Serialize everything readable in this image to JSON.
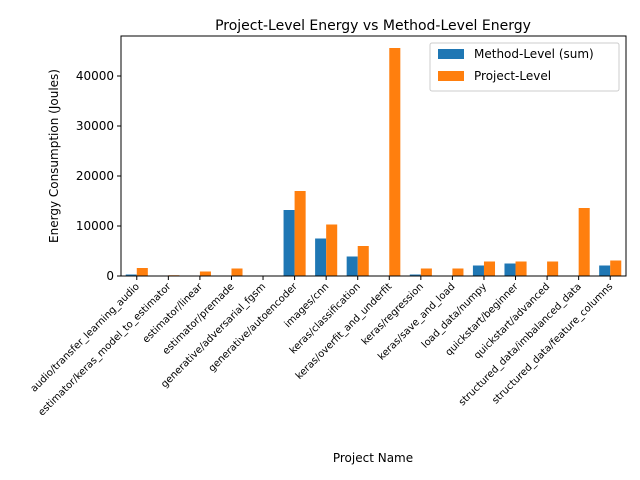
{
  "chart_data": {
    "type": "bar",
    "title": "Project-Level Energy vs Method-Level Energy",
    "xlabel": "Project Name",
    "ylabel": "Energy Consumption (Joules)",
    "ylim": [
      0,
      48000
    ],
    "yticks": [
      0,
      10000,
      20000,
      30000,
      40000
    ],
    "grid": false,
    "legend_position": "top-right",
    "categories": [
      "audio/transfer_learning_audio",
      "estimator/keras_model_to_estimator",
      "estimator/linear",
      "estimator/premade",
      "generative/adversarial_fgsm",
      "generative/autoencoder",
      "images/cnn",
      "keras/classification",
      "keras/overfit_and_underfit",
      "keras/regression",
      "keras/save_and_load",
      "load_data/numpy",
      "quickstart/beginner",
      "quickstart/advanced",
      "structured_data/imbalanced_data",
      "structured_data/feature_columns"
    ],
    "series": [
      {
        "name": "Method-Level (sum)",
        "color": "#1f77b4",
        "values": [
          300,
          100,
          0,
          0,
          100,
          13200,
          7500,
          3900,
          0,
          300,
          0,
          2100,
          2500,
          0,
          0,
          2100
        ]
      },
      {
        "name": "Project-Level",
        "color": "#ff7f0e",
        "values": [
          1600,
          150,
          900,
          1500,
          100,
          17000,
          10300,
          6000,
          45600,
          1500,
          1500,
          2900,
          2900,
          2900,
          13600,
          3100
        ]
      }
    ]
  }
}
